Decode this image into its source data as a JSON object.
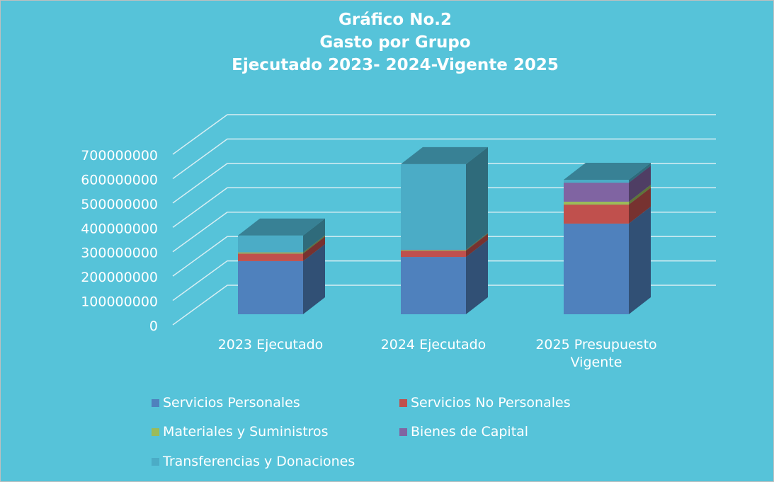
{
  "chart_data": {
    "type": "bar3d_stacked",
    "title": [
      "Gráfico No.2",
      "Gasto por Grupo",
      "Ejecutado 2023- 2024-Vigente 2025"
    ],
    "categories": [
      "2023 Ejecutado",
      "2024 Ejecutado",
      "2025 Presupuesto Vigente"
    ],
    "series": [
      {
        "name": "Servicios Personales",
        "color": "#4f81bd",
        "values": [
          218000000,
          235000000,
          372000000
        ]
      },
      {
        "name": "Servicios No Personales",
        "color": "#c0504d",
        "values": [
          31000000,
          26000000,
          78000000
        ]
      },
      {
        "name": "Materiales y Suministros",
        "color": "#9bbb59",
        "values": [
          5000000,
          3000000,
          12000000
        ]
      },
      {
        "name": "Bienes de Capital",
        "color": "#8064a2",
        "values": [
          1000000,
          1000000,
          78000000
        ]
      },
      {
        "name": "Transferencias y Donaciones",
        "color": "#4bacc6",
        "values": [
          68000000,
          351000000,
          12000000
        ]
      }
    ],
    "ylim": [
      0,
      700000000
    ],
    "yticks": [
      0,
      100000000,
      200000000,
      300000000,
      400000000,
      500000000,
      600000000,
      700000000
    ],
    "grid": true
  }
}
